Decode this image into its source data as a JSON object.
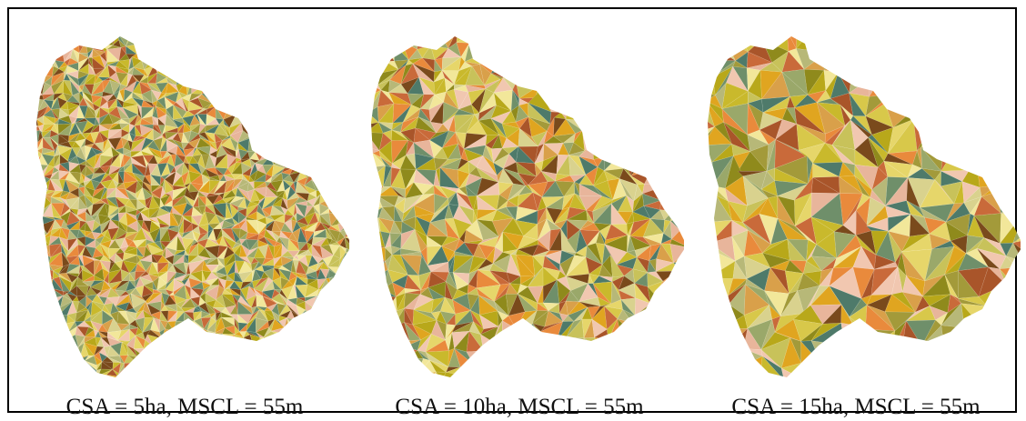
{
  "figure": {
    "panels": [
      {
        "caption": "CSA = 5ha, MSCL = 55m"
      },
      {
        "caption": "CSA = 10ha, MSCL = 55m"
      },
      {
        "caption": "CSA = 15ha, MSCL = 55m"
      }
    ],
    "palette": [
      "#b8a81a",
      "#c9b92c",
      "#8f8a1c",
      "#e0a520",
      "#d8c84a",
      "#9aa86a",
      "#b7b878",
      "#d9d28e",
      "#f2e79a",
      "#c96a3a",
      "#e98a3c",
      "#a9552a",
      "#7a4a1c",
      "#e8b59b",
      "#f1c7b0",
      "#d9a04a",
      "#6f8f6a",
      "#4e7a6a",
      "#c8c25a",
      "#e6d66a",
      "#a39a3a"
    ]
  }
}
